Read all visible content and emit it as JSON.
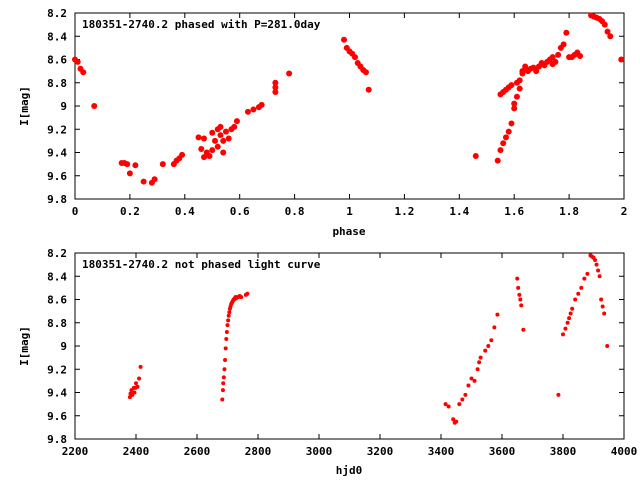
{
  "chart_data": [
    {
      "type": "scatter",
      "title": "180351-2740.2 phased with P=281.0day",
      "xlabel": "phase",
      "ylabel": "I[mag]",
      "xlim": [
        0,
        2
      ],
      "ylim": [
        8.2,
        9.8
      ],
      "y_inverted": true,
      "grid": false,
      "marker_color": "#ff0000",
      "xticks": [
        "0",
        "0.2",
        "0.4",
        "0.6",
        "0.8",
        "1",
        "1.2",
        "1.4",
        "1.6",
        "1.8",
        "2"
      ],
      "yticks": [
        "8.2",
        "8.4",
        "8.6",
        "8.8",
        "9",
        "9.2",
        "9.4",
        "9.6",
        "9.8"
      ],
      "points": [
        [
          0.0,
          8.6
        ],
        [
          0.01,
          8.62
        ],
        [
          0.02,
          8.68
        ],
        [
          0.03,
          8.71
        ],
        [
          0.07,
          9.0
        ],
        [
          0.17,
          9.49
        ],
        [
          0.18,
          9.49
        ],
        [
          0.19,
          9.5
        ],
        [
          0.2,
          9.58
        ],
        [
          0.22,
          9.51
        ],
        [
          0.25,
          9.65
        ],
        [
          0.28,
          9.66
        ],
        [
          0.29,
          9.63
        ],
        [
          0.32,
          9.5
        ],
        [
          0.36,
          9.5
        ],
        [
          0.37,
          9.47
        ],
        [
          0.38,
          9.45
        ],
        [
          0.39,
          9.42
        ],
        [
          0.45,
          9.27
        ],
        [
          0.46,
          9.37
        ],
        [
          0.47,
          9.28
        ],
        [
          0.47,
          9.44
        ],
        [
          0.48,
          9.4
        ],
        [
          0.49,
          9.43
        ],
        [
          0.5,
          9.38
        ],
        [
          0.5,
          9.23
        ],
        [
          0.51,
          9.3
        ],
        [
          0.52,
          9.2
        ],
        [
          0.52,
          9.35
        ],
        [
          0.53,
          9.25
        ],
        [
          0.53,
          9.18
        ],
        [
          0.54,
          9.3
        ],
        [
          0.54,
          9.4
        ],
        [
          0.55,
          9.22
        ],
        [
          0.56,
          9.28
        ],
        [
          0.57,
          9.2
        ],
        [
          0.58,
          9.18
        ],
        [
          0.59,
          9.13
        ],
        [
          0.63,
          9.05
        ],
        [
          0.65,
          9.03
        ],
        [
          0.67,
          9.01
        ],
        [
          0.68,
          8.99
        ],
        [
          0.73,
          8.88
        ],
        [
          0.73,
          8.84
        ],
        [
          0.73,
          8.8
        ],
        [
          0.78,
          8.72
        ],
        [
          0.98,
          8.43
        ],
        [
          0.99,
          8.5
        ],
        [
          1.0,
          8.53
        ],
        [
          1.01,
          8.55
        ],
        [
          1.02,
          8.58
        ],
        [
          1.03,
          8.63
        ],
        [
          1.04,
          8.66
        ],
        [
          1.05,
          8.69
        ],
        [
          1.06,
          8.71
        ],
        [
          1.07,
          8.86
        ],
        [
          1.46,
          9.43
        ],
        [
          1.54,
          9.47
        ],
        [
          1.55,
          9.38
        ],
        [
          1.55,
          8.9
        ],
        [
          1.56,
          9.32
        ],
        [
          1.56,
          8.88
        ],
        [
          1.57,
          9.27
        ],
        [
          1.57,
          8.86
        ],
        [
          1.58,
          9.22
        ],
        [
          1.58,
          8.84
        ],
        [
          1.59,
          9.15
        ],
        [
          1.59,
          8.82
        ],
        [
          1.6,
          8.98
        ],
        [
          1.6,
          9.02
        ],
        [
          1.61,
          8.92
        ],
        [
          1.61,
          8.8
        ],
        [
          1.62,
          8.85
        ],
        [
          1.62,
          8.78
        ],
        [
          1.63,
          8.72
        ],
        [
          1.63,
          8.7
        ],
        [
          1.64,
          8.66
        ],
        [
          1.64,
          8.68
        ],
        [
          1.65,
          8.7
        ],
        [
          1.66,
          8.68
        ],
        [
          1.67,
          8.67
        ],
        [
          1.68,
          8.7
        ],
        [
          1.69,
          8.66
        ],
        [
          1.7,
          8.63
        ],
        [
          1.71,
          8.65
        ],
        [
          1.72,
          8.62
        ],
        [
          1.73,
          8.6
        ],
        [
          1.74,
          8.58
        ],
        [
          1.74,
          8.64
        ],
        [
          1.75,
          8.62
        ],
        [
          1.76,
          8.56
        ],
        [
          1.77,
          8.5
        ],
        [
          1.78,
          8.47
        ],
        [
          1.79,
          8.37
        ],
        [
          1.8,
          8.58
        ],
        [
          1.81,
          8.58
        ],
        [
          1.82,
          8.56
        ],
        [
          1.83,
          8.54
        ],
        [
          1.84,
          8.57
        ],
        [
          1.88,
          8.22
        ],
        [
          1.89,
          8.23
        ],
        [
          1.9,
          8.24
        ],
        [
          1.91,
          8.25
        ],
        [
          1.92,
          8.27
        ],
        [
          1.93,
          8.3
        ],
        [
          1.94,
          8.36
        ],
        [
          1.95,
          8.4
        ],
        [
          1.99,
          8.6
        ]
      ]
    },
    {
      "type": "scatter",
      "title": "180351-2740.2 not phased light curve",
      "xlabel": "hjd0",
      "ylabel": "I[mag]",
      "xlim": [
        2200,
        4000
      ],
      "ylim": [
        8.2,
        9.8
      ],
      "y_inverted": true,
      "grid": false,
      "marker_color": "#ff0000",
      "xticks": [
        "2200",
        "2400",
        "2600",
        "2800",
        "3000",
        "3200",
        "3400",
        "3600",
        "3800",
        "4000"
      ],
      "yticks": [
        "8.2",
        "8.4",
        "8.6",
        "8.8",
        "9",
        "9.2",
        "9.4",
        "9.6",
        "9.8"
      ],
      "points": [
        [
          2380,
          9.44
        ],
        [
          2382,
          9.41
        ],
        [
          2385,
          9.38
        ],
        [
          2388,
          9.42
        ],
        [
          2390,
          9.4
        ],
        [
          2393,
          9.36
        ],
        [
          2395,
          9.4
        ],
        [
          2398,
          9.36
        ],
        [
          2400,
          9.32
        ],
        [
          2405,
          9.35
        ],
        [
          2410,
          9.28
        ],
        [
          2415,
          9.18
        ],
        [
          2683,
          9.46
        ],
        [
          2685,
          9.38
        ],
        [
          2686,
          9.32
        ],
        [
          2688,
          9.27
        ],
        [
          2690,
          9.2
        ],
        [
          2692,
          9.12
        ],
        [
          2694,
          9.02
        ],
        [
          2696,
          8.94
        ],
        [
          2698,
          8.88
        ],
        [
          2700,
          8.82
        ],
        [
          2702,
          8.78
        ],
        [
          2704,
          8.74
        ],
        [
          2706,
          8.71
        ],
        [
          2708,
          8.68
        ],
        [
          2710,
          8.66
        ],
        [
          2712,
          8.64
        ],
        [
          2714,
          8.63
        ],
        [
          2716,
          8.62
        ],
        [
          2718,
          8.61
        ],
        [
          2720,
          8.6
        ],
        [
          2722,
          8.6
        ],
        [
          2724,
          8.59
        ],
        [
          2726,
          8.58
        ],
        [
          2728,
          8.59
        ],
        [
          2730,
          8.58
        ],
        [
          2735,
          8.58
        ],
        [
          2740,
          8.57
        ],
        [
          2745,
          8.58
        ],
        [
          2760,
          8.56
        ],
        [
          2765,
          8.55
        ],
        [
          3415,
          9.5
        ],
        [
          3425,
          9.52
        ],
        [
          3440,
          9.63
        ],
        [
          3445,
          9.66
        ],
        [
          3450,
          9.65
        ],
        [
          3460,
          9.5
        ],
        [
          3470,
          9.46
        ],
        [
          3480,
          9.42
        ],
        [
          3490,
          9.34
        ],
        [
          3500,
          9.28
        ],
        [
          3510,
          9.3
        ],
        [
          3520,
          9.2
        ],
        [
          3525,
          9.14
        ],
        [
          3530,
          9.1
        ],
        [
          3545,
          9.04
        ],
        [
          3555,
          9.0
        ],
        [
          3565,
          8.95
        ],
        [
          3575,
          8.84
        ],
        [
          3585,
          8.73
        ],
        [
          3650,
          8.42
        ],
        [
          3653,
          8.5
        ],
        [
          3657,
          8.56
        ],
        [
          3660,
          8.6
        ],
        [
          3663,
          8.65
        ],
        [
          3670,
          8.86
        ],
        [
          3785,
          9.42
        ],
        [
          3800,
          8.9
        ],
        [
          3808,
          8.85
        ],
        [
          3815,
          8.8
        ],
        [
          3820,
          8.76
        ],
        [
          3825,
          8.72
        ],
        [
          3830,
          8.68
        ],
        [
          3840,
          8.6
        ],
        [
          3850,
          8.55
        ],
        [
          3860,
          8.5
        ],
        [
          3870,
          8.42
        ],
        [
          3880,
          8.38
        ],
        [
          3890,
          8.22
        ],
        [
          3895,
          8.23
        ],
        [
          3900,
          8.24
        ],
        [
          3905,
          8.26
        ],
        [
          3910,
          8.3
        ],
        [
          3915,
          8.35
        ],
        [
          3920,
          8.4
        ],
        [
          3925,
          8.6
        ],
        [
          3930,
          8.66
        ],
        [
          3935,
          8.72
        ],
        [
          3945,
          9.0
        ]
      ]
    }
  ]
}
